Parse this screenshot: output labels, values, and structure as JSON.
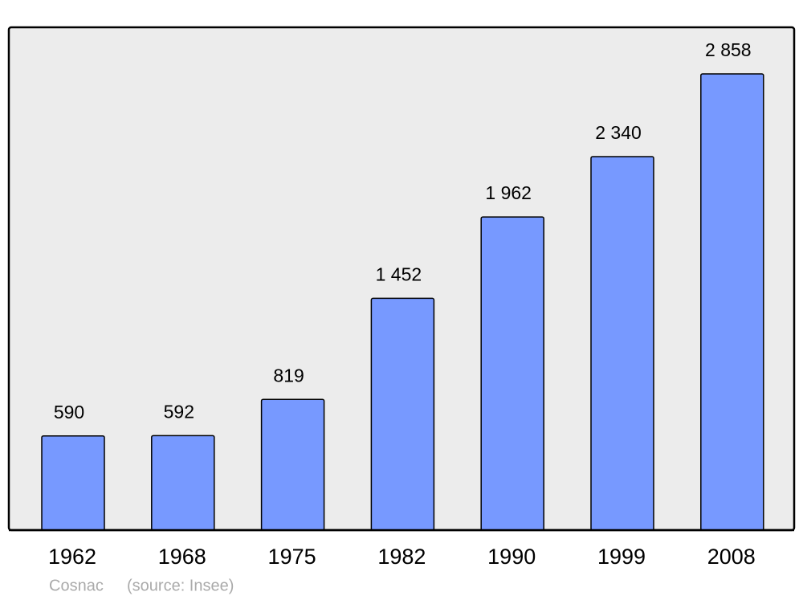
{
  "chart_data": {
    "type": "bar",
    "categories": [
      "1962",
      "1968",
      "1975",
      "1982",
      "1990",
      "1999",
      "2008"
    ],
    "values": [
      590,
      592,
      819,
      1452,
      1962,
      2340,
      2858
    ],
    "value_labels": [
      "590",
      "592",
      "819",
      "1 452",
      "1 962",
      "2 340",
      "2 858"
    ],
    "color": "#7799ff",
    "place": "Cosnac",
    "source": "(source: Insee)"
  }
}
